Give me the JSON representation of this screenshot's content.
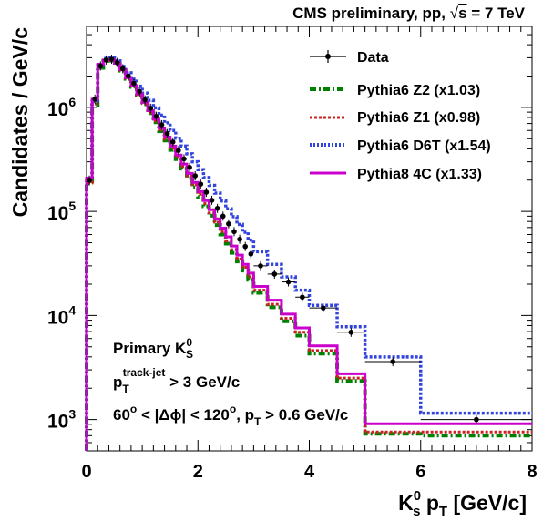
{
  "header": {
    "title_prefix": "CMS preliminary, pp, ",
    "title_root": "s",
    "title_suffix": " = 7 TeV"
  },
  "chart_data": {
    "type": "line",
    "xlabel": {
      "base": "K",
      "sup": "0",
      "sub": "s",
      "mid": " p",
      "sub2": "T",
      "tail": " [GeV/c]"
    },
    "ylabel": "Candidates / GeV/c",
    "xlim": [
      0,
      8
    ],
    "ylim": [
      500,
      6000000
    ],
    "yscale": "log",
    "x_ticks": [
      0,
      2,
      4,
      6,
      8
    ],
    "x_tick_labels": [
      "0",
      "2",
      "4",
      "6",
      "8"
    ],
    "y_ticks": [
      {
        "value": 1000,
        "base": "10",
        "exp": "3"
      },
      {
        "value": 10000,
        "base": "10",
        "exp": "4"
      },
      {
        "value": 100000,
        "base": "10",
        "exp": "5"
      },
      {
        "value": 1000000,
        "base": "10",
        "exp": "6"
      }
    ],
    "bin_edges": [
      0,
      0.1,
      0.2,
      0.3,
      0.4,
      0.5,
      0.6,
      0.7,
      0.8,
      0.9,
      1.0,
      1.1,
      1.2,
      1.3,
      1.4,
      1.5,
      1.6,
      1.7,
      1.8,
      1.9,
      2.0,
      2.1,
      2.2,
      2.3,
      2.4,
      2.5,
      2.6,
      2.7,
      2.8,
      2.9,
      3.0,
      3.25,
      3.5,
      3.75,
      4.0,
      4.5,
      5.0,
      6.0,
      8.0
    ],
    "series": [
      {
        "name": "Data",
        "style": "points",
        "color": "#000000",
        "x": [
          0.05,
          0.15,
          0.25,
          0.35,
          0.45,
          0.55,
          0.65,
          0.75,
          0.85,
          0.95,
          1.05,
          1.15,
          1.25,
          1.35,
          1.45,
          1.55,
          1.65,
          1.75,
          1.85,
          1.95,
          2.05,
          2.15,
          2.25,
          2.35,
          2.45,
          2.55,
          2.65,
          2.75,
          2.85,
          2.95,
          3.125,
          3.375,
          3.625,
          3.875,
          4.25,
          4.75,
          5.5,
          7.0
        ],
        "y": [
          200000,
          1200000,
          2500000,
          2850000,
          2900000,
          2700000,
          2350000,
          2000000,
          1700000,
          1420000,
          1180000,
          980000,
          820000,
          680000,
          560000,
          465000,
          385000,
          320000,
          265000,
          220000,
          183000,
          153000,
          128000,
          107000,
          90000,
          76000,
          64000,
          54000,
          46000,
          39000,
          30000,
          25000,
          21000,
          15000,
          11800,
          6900,
          3600,
          1000
        ]
      },
      {
        "name": "Pythia6 Z2 (x1.03)",
        "style": "hist-dashdot",
        "color": "#008000",
        "values": [
          185000,
          1050000,
          2400000,
          2800000,
          2820000,
          2600000,
          2250000,
          1880000,
          1570000,
          1300000,
          1070000,
          880000,
          720000,
          590000,
          480000,
          390000,
          318000,
          258000,
          210000,
          170000,
          138000,
          112000,
          91000,
          74000,
          60000,
          49000,
          40000,
          33000,
          27000,
          22000,
          16500,
          12000,
          8800,
          6400,
          4300,
          2350,
          730,
          700
        ]
      },
      {
        "name": "Pythia6 Z1 (x0.98)",
        "style": "hist-dotted",
        "color": "#cc2222",
        "values": [
          188000,
          1080000,
          2420000,
          2820000,
          2850000,
          2630000,
          2280000,
          1910000,
          1600000,
          1320000,
          1090000,
          900000,
          740000,
          610000,
          495000,
          405000,
          330000,
          270000,
          220000,
          180000,
          146000,
          119000,
          97000,
          79000,
          64000,
          52000,
          43000,
          35000,
          29000,
          23500,
          17500,
          12800,
          9400,
          6900,
          4600,
          2500,
          760,
          760
        ]
      },
      {
        "name": "Pythia6 D6T (x1.54)",
        "style": "hist-dotted",
        "color": "#3344dd",
        "values": [
          200000,
          1150000,
          2550000,
          2950000,
          2980000,
          2800000,
          2480000,
          2150000,
          1870000,
          1600000,
          1370000,
          1170000,
          990000,
          840000,
          710000,
          600000,
          505000,
          425000,
          358000,
          300000,
          252000,
          212000,
          178000,
          150000,
          126000,
          106000,
          89000,
          75000,
          63000,
          53000,
          41000,
          31000,
          23500,
          17500,
          12500,
          7800,
          4000,
          1150
        ]
      },
      {
        "name": "Pythia8 4C (x1.33)",
        "style": "hist-solid",
        "color": "#cc00cc",
        "values": [
          210000,
          1200000,
          2600000,
          2850000,
          2870000,
          2650000,
          2300000,
          1930000,
          1620000,
          1350000,
          1120000,
          930000,
          770000,
          635000,
          520000,
          425000,
          348000,
          285000,
          232000,
          190000,
          155000,
          127000,
          104000,
          85000,
          69000,
          57000,
          46500,
          38000,
          31000,
          25500,
          19000,
          14000,
          10300,
          7600,
          5100,
          2750,
          910,
          910
        ]
      }
    ],
    "legend_position": "top-right"
  },
  "annotations": {
    "line1_main": "Primary K",
    "line1_sup": "0",
    "line1_sub": "S",
    "line2_p": "p",
    "line2_sub": "T",
    "line2_sup": "track-jet",
    "line2_tail": " > 3 GeV/c",
    "line3_a": "60",
    "line3_sup_a": "o",
    "line3_b": " < |Δϕ| < 120",
    "line3_sup_b": "o",
    "line3_c": ", p",
    "line3_sub_c": "T",
    "line3_d": " > 0.6 GeV/c"
  }
}
